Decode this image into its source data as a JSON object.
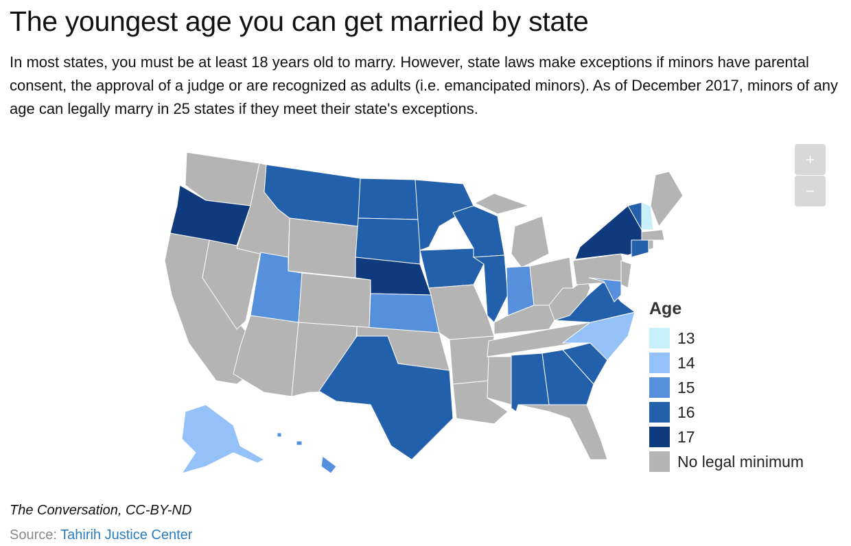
{
  "title": "The youngest age you can get married by state",
  "subtitle": "In most states, you must be at least 18 years old to marry. However, state laws make exceptions if minors have parental consent, the approval of a judge or are recognized as adults (i.e. emancipated minors). As of December 2017, minors of any age can legally marry in 25 states if they meet their state's exceptions.",
  "zoom": [
    "+",
    "−"
  ],
  "legend": {
    "title": "Age",
    "items": [
      {
        "label": "13",
        "color": "#c7f0fa"
      },
      {
        "label": "14",
        "color": "#93c1f8"
      },
      {
        "label": "15",
        "color": "#5690dc"
      },
      {
        "label": "16",
        "color": "#2360ab"
      },
      {
        "label": "17",
        "color": "#0f3a7e"
      },
      {
        "label": "No legal minimum",
        "color": "#b4b4b4"
      }
    ]
  },
  "credit": "The Conversation, CC-BY-ND",
  "source": {
    "prefix": "Source:",
    "link": "Tahirih Justice Center"
  }
}
